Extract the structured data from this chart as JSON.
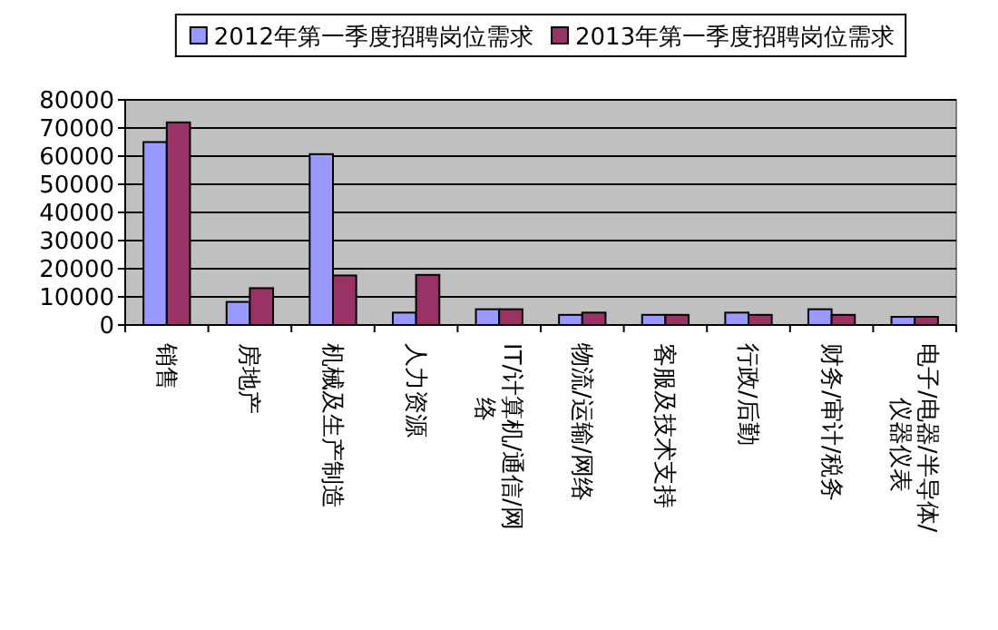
{
  "chart_data": {
    "type": "bar",
    "categories": [
      "销售",
      "房地产",
      "机械及生产制造",
      "人力资源",
      "IT/计算机/通信/网络",
      "物流/运输/网络",
      "客服及技术支持",
      "行政/后勤",
      "财务/审计/税务",
      "电子/电器/半导体/仪器仪表"
    ],
    "series": [
      {
        "name": "2012年第一季度招聘岗位需求",
        "color": "#9999ff",
        "values": [
          65000,
          8200,
          60700,
          4400,
          5600,
          3600,
          3600,
          4400,
          5600,
          2900
        ]
      },
      {
        "name": "2013年第一季度招聘岗位需求",
        "color": "#993366",
        "values": [
          72000,
          13100,
          17600,
          17800,
          5600,
          4400,
          3600,
          3600,
          3600,
          2900
        ]
      }
    ],
    "ylim": [
      0,
      80000
    ],
    "yticks": [
      0,
      10000,
      20000,
      30000,
      40000,
      50000,
      60000,
      70000,
      80000
    ],
    "grid": "y",
    "legend": "top"
  }
}
